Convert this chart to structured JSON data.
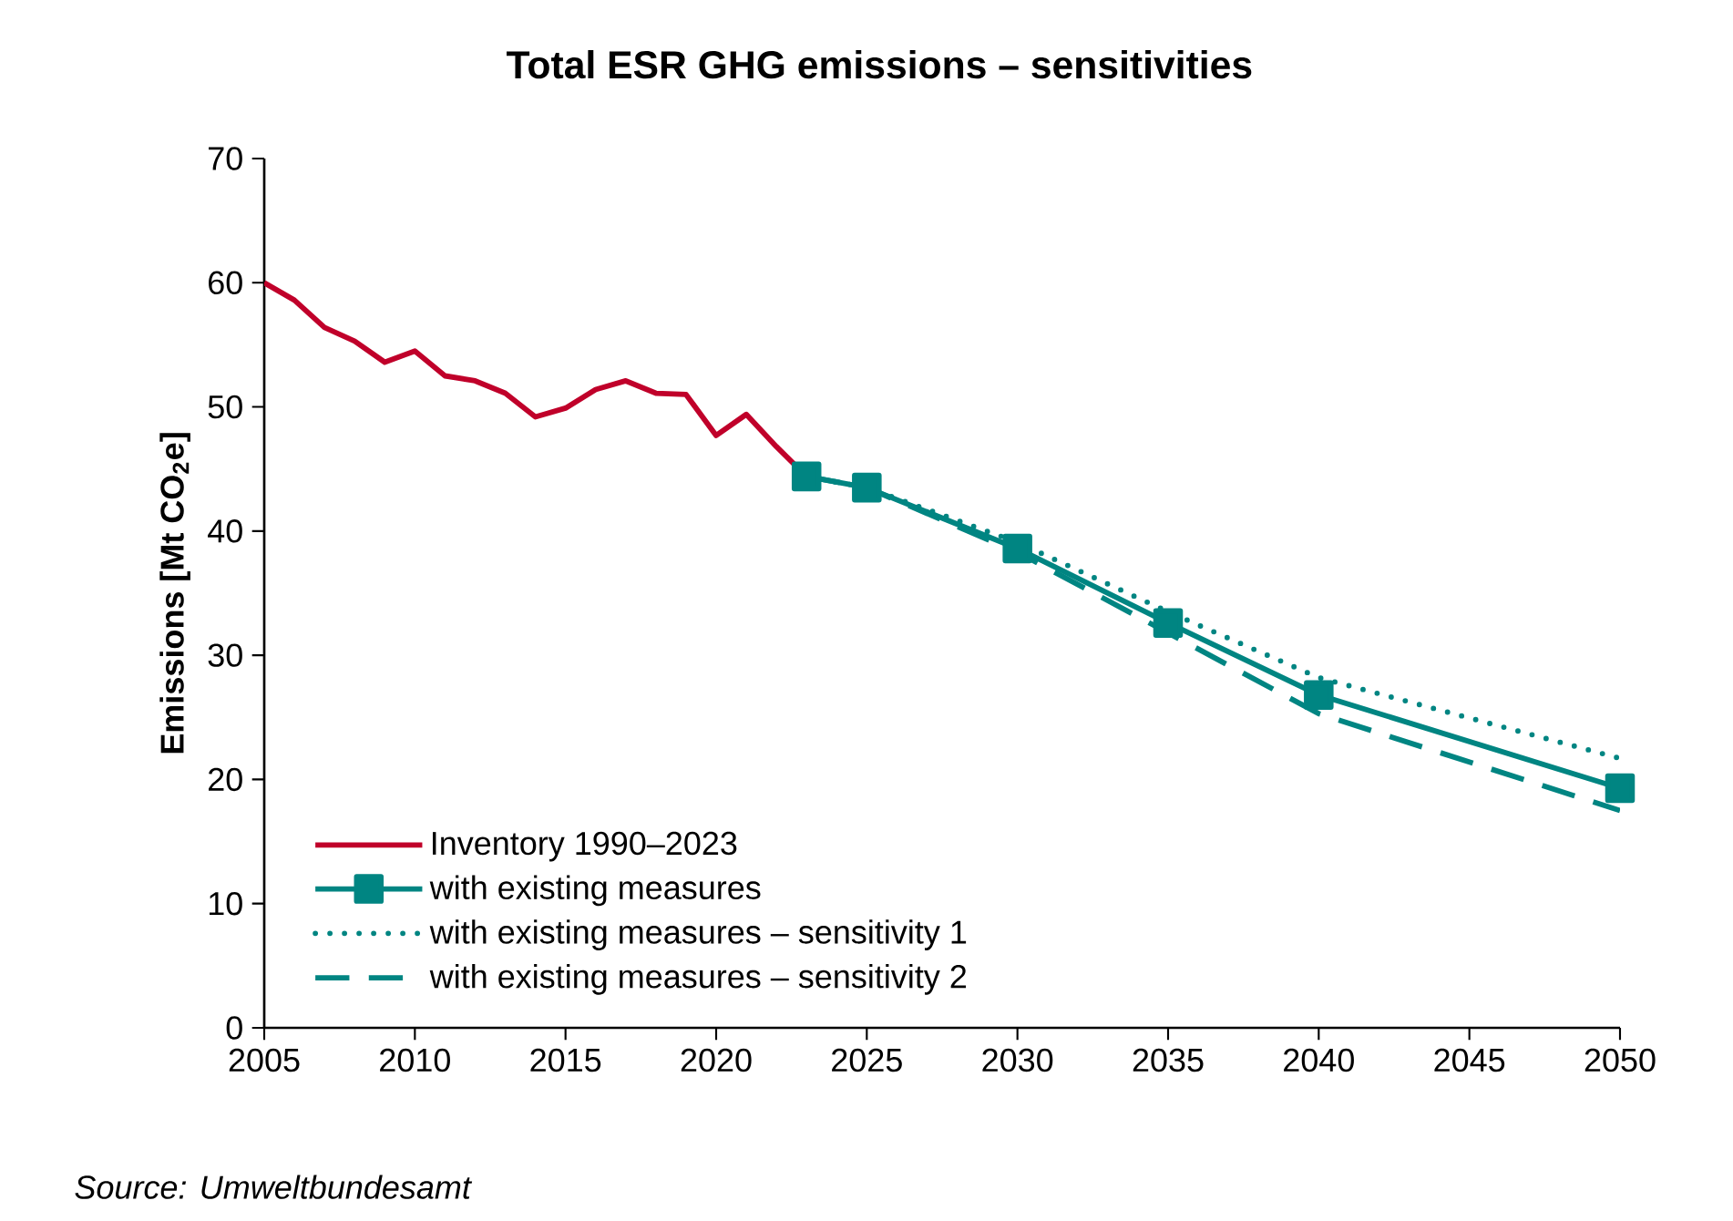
{
  "chart_data": {
    "type": "line",
    "title": "Total ESR GHG emissions – sensitivities",
    "ylabel": "Emissions [Mt CO$_{2}$e]",
    "xlim": [
      2005,
      2050
    ],
    "xticks": [
      2005,
      2010,
      2015,
      2020,
      2025,
      2030,
      2035,
      2040,
      2045,
      2050
    ],
    "ylim": [
      0,
      70
    ],
    "yticks": [
      0,
      10,
      20,
      30,
      40,
      50,
      60,
      70
    ],
    "grid": false,
    "legend": "bottom left",
    "annotations": [
      "Source: Umweltbundesamt"
    ],
    "series": [
      {
        "name": "Inventory 1990–2023",
        "color": "#c0002a",
        "marker": "none",
        "line_style": "solid",
        "x": [
          2005,
          2006,
          2007,
          2008,
          2009,
          2010,
          2011,
          2012,
          2013,
          2014,
          2015,
          2016,
          2017,
          2018,
          2019,
          2020,
          2021,
          2022,
          2023
        ],
        "values": [
          60.0,
          58.6,
          56.4,
          55.3,
          53.6,
          54.5,
          52.5,
          52.1,
          51.1,
          49.2,
          49.9,
          51.4,
          52.1,
          51.1,
          51.0,
          47.7,
          49.4,
          46.8,
          44.4
        ]
      },
      {
        "name": "with existing measures",
        "color": "#008582",
        "marker": "square",
        "line_style": "solid",
        "x": [
          2023,
          2025,
          2030,
          2035,
          2040,
          2050
        ],
        "values": [
          44.4,
          43.5,
          38.6,
          32.6,
          26.8,
          19.3
        ]
      },
      {
        "name": "with existing measures – sensitivity 1",
        "color": "#008582",
        "marker": "none",
        "line_style": "dotted",
        "x": [
          2023,
          2025,
          2030,
          2035,
          2040,
          2050
        ],
        "values": [
          44.4,
          43.5,
          39.1,
          33.5,
          28.2,
          21.7
        ]
      },
      {
        "name": "with existing measures – sensitivity 2",
        "color": "#008582",
        "marker": "none",
        "line_style": "dashed",
        "x": [
          2023,
          2025,
          2030,
          2035,
          2040,
          2050
        ],
        "values": [
          44.4,
          43.5,
          38.3,
          31.8,
          25.3,
          17.5
        ]
      }
    ]
  }
}
